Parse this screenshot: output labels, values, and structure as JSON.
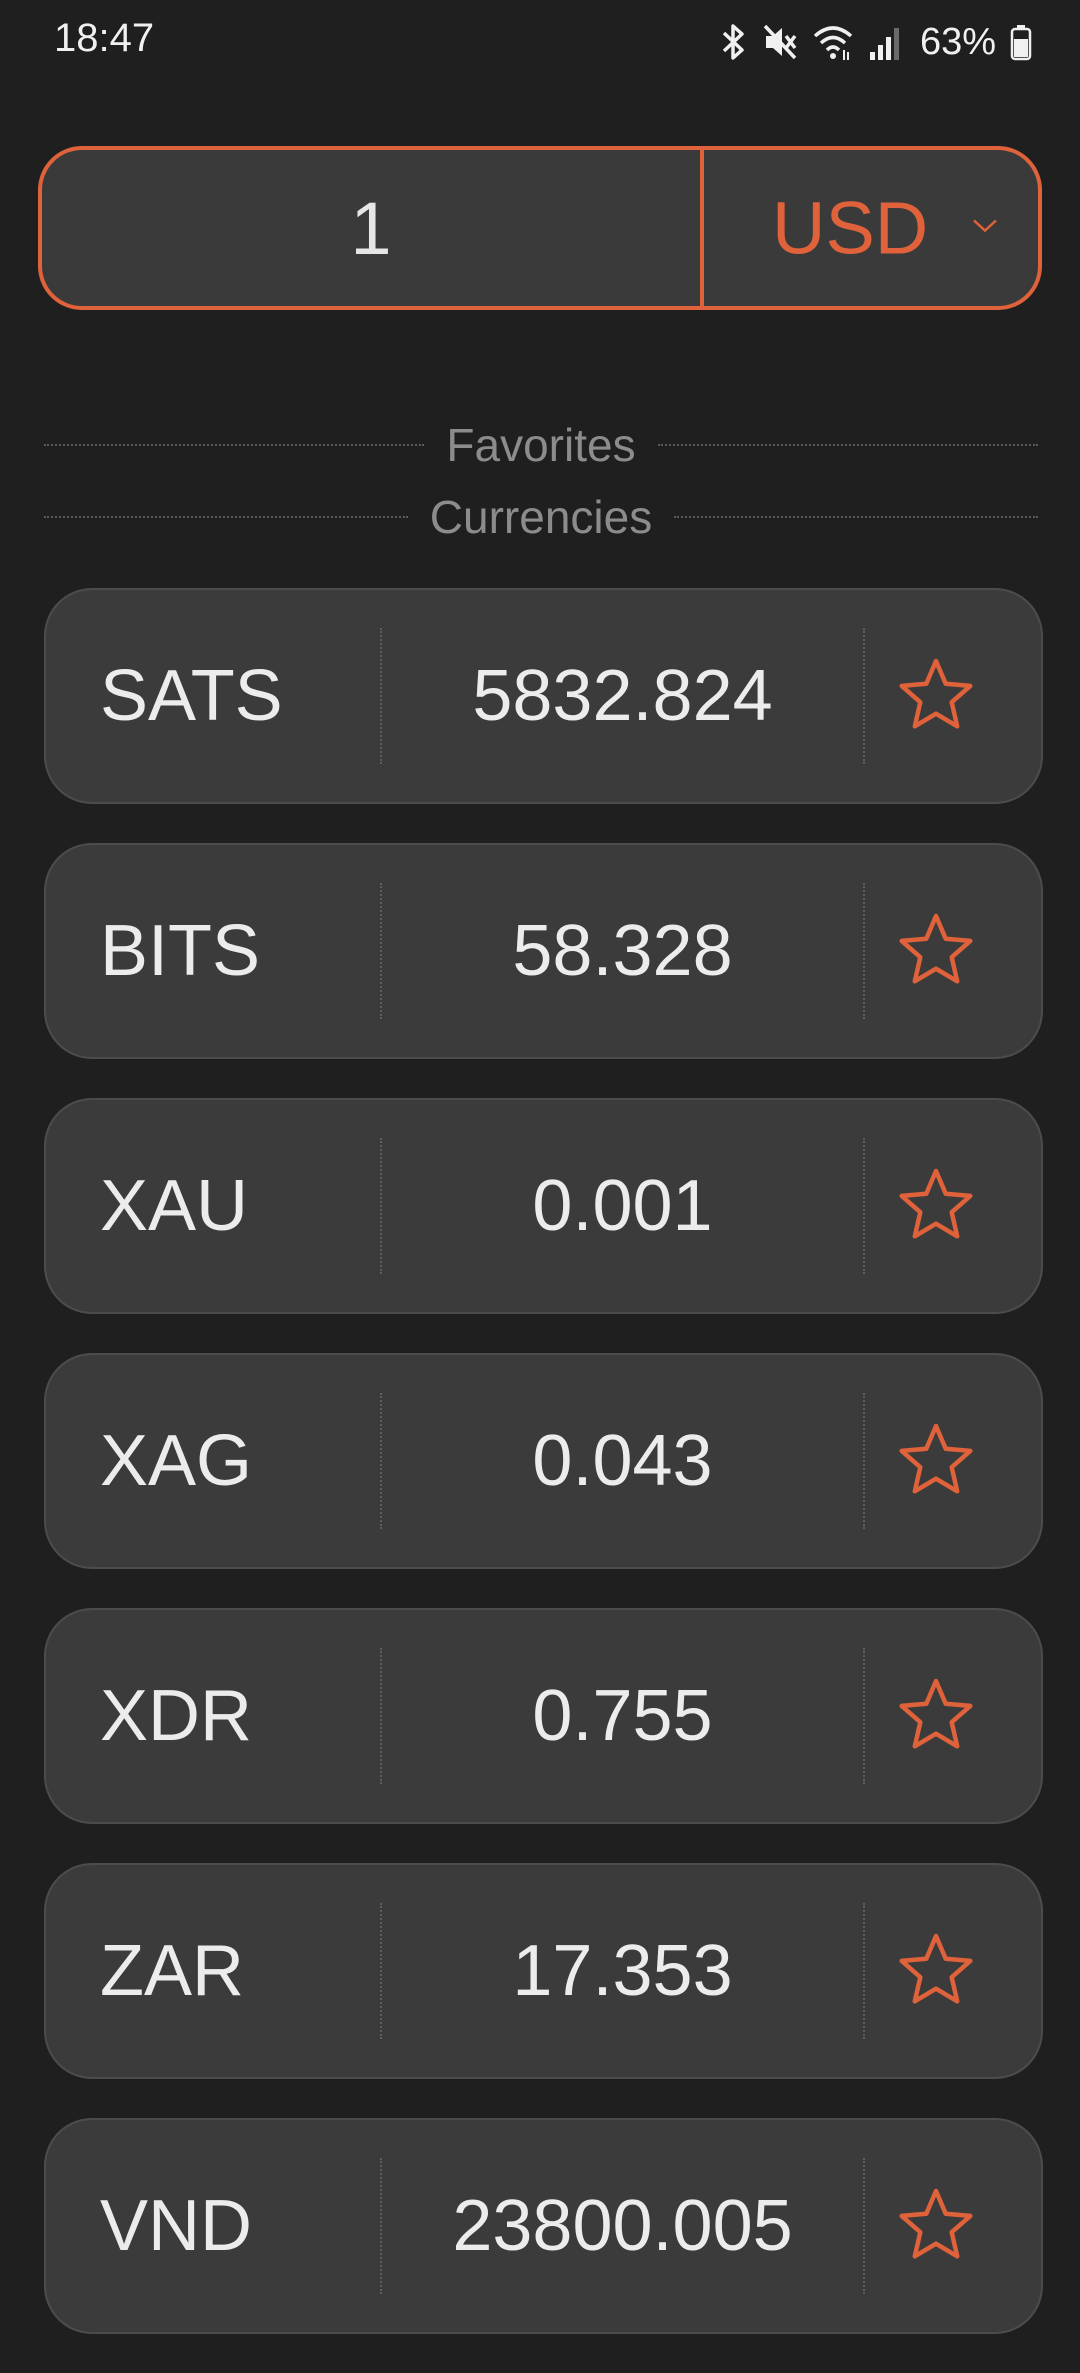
{
  "status_bar": {
    "time": "18:47",
    "battery": "63%",
    "icons": [
      "bluetooth-icon",
      "mute-icon",
      "wifi-icon",
      "signal-icon",
      "battery-icon"
    ]
  },
  "converter": {
    "amount": "1",
    "currency": "USD"
  },
  "sections": {
    "favorites": "Favorites",
    "currencies": "Currencies"
  },
  "colors": {
    "accent": "#e0623b",
    "background": "#1f1f1f",
    "card": "#3b3b3b"
  },
  "currency_rows": [
    {
      "code": "SATS",
      "value": "5832.824",
      "favorite": false
    },
    {
      "code": "BITS",
      "value": "58.328",
      "favorite": false
    },
    {
      "code": "XAU",
      "value": "0.001",
      "favorite": false
    },
    {
      "code": "XAG",
      "value": "0.043",
      "favorite": false
    },
    {
      "code": "XDR",
      "value": "0.755",
      "favorite": false
    },
    {
      "code": "ZAR",
      "value": "17.353",
      "favorite": false
    },
    {
      "code": "VND",
      "value": "23800.005",
      "favorite": false
    }
  ]
}
